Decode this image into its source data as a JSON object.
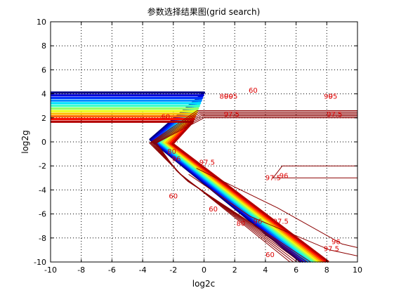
{
  "chart_data": {
    "type": "contour",
    "title": "参数选择结果图(grid search)",
    "xlabel": "log2c",
    "ylabel": "log2g",
    "xlim": [
      -10,
      10
    ],
    "ylim": [
      -10,
      10
    ],
    "xticks": [
      "-10",
      "-8",
      "-6",
      "-4",
      "-2",
      "0",
      "2",
      "4",
      "6",
      "8",
      "10"
    ],
    "yticks": [
      "-10",
      "-8",
      "-6",
      "-4",
      "-2",
      "0",
      "2",
      "4",
      "6",
      "8",
      "10"
    ],
    "grid": true,
    "colormap": "jet",
    "levels": {
      "bands_count": 12,
      "band_spacing": 0.22,
      "inner_levels": [
        0,
        0.25,
        0.5,
        0.75,
        1.0,
        1.25,
        1.5
      ],
      "outer_polyline": [
        [
          -10,
          4.1
        ],
        [
          0,
          4.1
        ],
        [
          -3.5,
          0.2
        ],
        [
          6.3,
          -10
        ]
      ],
      "inner_polyline": [
        [
          10,
          2.0
        ],
        [
          0,
          2.0
        ],
        [
          -3.1,
          -0.1
        ],
        [
          -1.8,
          -2.4
        ],
        [
          5.6,
          -10
        ]
      ]
    },
    "contour_labels": [
      {
        "text": "60",
        "x": 3.2,
        "y": 4.1
      },
      {
        "text": "80",
        "x": 1.3,
        "y": 3.6
      },
      {
        "text": "90",
        "x": 1.6,
        "y": 3.6
      },
      {
        "text": "95",
        "x": 1.9,
        "y": 3.6
      },
      {
        "text": "97.5",
        "x": 1.8,
        "y": 2.1
      },
      {
        "text": "90",
        "x": 8.1,
        "y": 3.6
      },
      {
        "text": "95",
        "x": 8.4,
        "y": 3.6
      },
      {
        "text": "97.5",
        "x": 8.5,
        "y": 2.1
      },
      {
        "text": "60",
        "x": -2.5,
        "y": 1.9
      },
      {
        "text": "80",
        "x": -2.1,
        "y": -1.0
      },
      {
        "text": "96",
        "x": -1.8,
        "y": -1.6
      },
      {
        "text": "97.5",
        "x": 0.2,
        "y": -1.9
      },
      {
        "text": "97.5",
        "x": 4.5,
        "y": -3.2
      },
      {
        "text": "96",
        "x": 5.2,
        "y": -3.0
      },
      {
        "text": "60",
        "x": -2.0,
        "y": -4.7
      },
      {
        "text": "60",
        "x": 0.6,
        "y": -5.8
      },
      {
        "text": "80",
        "x": 2.4,
        "y": -7.0
      },
      {
        "text": "96",
        "x": 3.5,
        "y": -6.8
      },
      {
        "text": "97.5",
        "x": 5.0,
        "y": -6.8
      },
      {
        "text": "96",
        "x": 8.6,
        "y": -8.5
      },
      {
        "text": "97.5",
        "x": 8.3,
        "y": -9.1
      },
      {
        "text": "60",
        "x": 4.3,
        "y": -9.6
      }
    ]
  }
}
